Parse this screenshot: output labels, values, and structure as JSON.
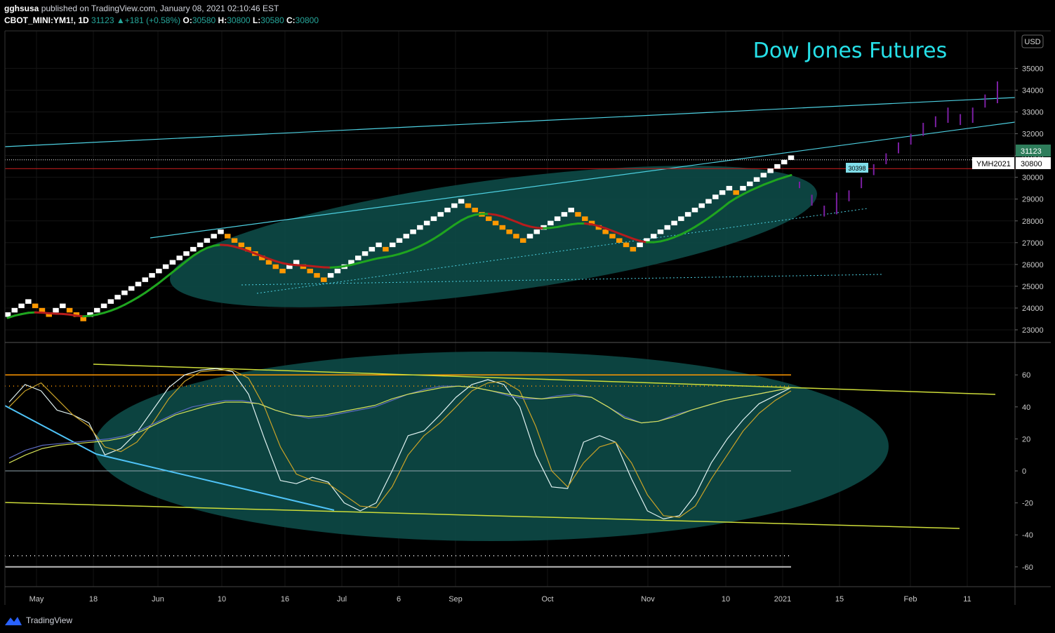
{
  "header": {
    "publisher": "gghsusa",
    "published_text": "published on TradingView.com, January 08, 2021 02:10:46 EST",
    "symbol": "CBOT_MINI:YM1!, 1D",
    "last": "31123",
    "change": "+181 (+0.58%)",
    "o_label": "O:",
    "o": "30580",
    "h_label": "H:",
    "h": "30800",
    "l_label": "L:",
    "l": "30580",
    "c_label": "C:",
    "c": "30800"
  },
  "currency_button": "USD",
  "annotation_title": "Dow Jones Futures",
  "price_tags": {
    "last": "31123",
    "close": "30800",
    "contract": "YMH2021",
    "level": "30398"
  },
  "footer": {
    "brand": "TradingView"
  },
  "colors": {
    "background": "#000000",
    "bull_brick": "#ffffff",
    "bear_brick": "#ff9800",
    "ma_up": "#1fa51f",
    "ma_down": "#b71c1c",
    "trendline": "#4dd0e1",
    "ellipse": "#0d4a47",
    "title": "#26e0e8",
    "projection": "#7b1fa2",
    "osc_fast": "#e0f2f1",
    "osc_slow": "#c9a227",
    "osc_signal": "#d4e157",
    "osc_avg": "#5c6bc0"
  },
  "chart_data": [
    {
      "type": "renko",
      "y_axis": {
        "ticks": [
          23000,
          24000,
          25000,
          26000,
          27000,
          28000,
          29000,
          30000,
          31000,
          32000,
          33000,
          34000,
          35000
        ],
        "range": [
          22400,
          35800
        ]
      },
      "x_axis": {
        "ticks": [
          "May",
          "18",
          "Jun",
          "10",
          "16",
          "Jul",
          "6",
          "Sep",
          "Oct",
          "Nov",
          "10",
          "2021",
          "15",
          "Feb",
          "11"
        ]
      },
      "box_size": 200,
      "bricks": [
        23700,
        23900,
        24100,
        24300,
        24100,
        23900,
        23700,
        23900,
        24100,
        23900,
        23700,
        23500,
        23700,
        23900,
        24100,
        24300,
        24500,
        24700,
        24900,
        25100,
        25300,
        25500,
        25700,
        25900,
        26100,
        26300,
        26500,
        26700,
        26900,
        27100,
        27300,
        27500,
        27300,
        27100,
        26900,
        26700,
        26500,
        26300,
        26100,
        25900,
        25700,
        25900,
        26100,
        25900,
        25700,
        25500,
        25300,
        25500,
        25700,
        25900,
        26100,
        26300,
        26500,
        26700,
        26900,
        26700,
        26900,
        27100,
        27300,
        27500,
        27700,
        27900,
        28100,
        28300,
        28500,
        28700,
        28900,
        28700,
        28500,
        28300,
        28100,
        27900,
        27700,
        27500,
        27300,
        27100,
        27300,
        27500,
        27700,
        27900,
        28100,
        28300,
        28500,
        28300,
        28100,
        27900,
        27700,
        27500,
        27300,
        27100,
        26900,
        26700,
        26900,
        27100,
        27300,
        27500,
        27700,
        27900,
        28100,
        28300,
        28500,
        28700,
        28900,
        29100,
        29300,
        29500,
        29300,
        29500,
        29700,
        29900,
        30100,
        30300,
        30500,
        30700,
        30900
      ],
      "ma_line": [
        23550,
        23650,
        23720,
        23780,
        23800,
        23790,
        23760,
        23740,
        23730,
        23700,
        23650,
        23620,
        23640,
        23700,
        23780,
        23880,
        24000,
        24150,
        24320,
        24500,
        24700,
        24920,
        25150,
        25400,
        25650,
        25900,
        26150,
        26400,
        26600,
        26760,
        26860,
        26900,
        26880,
        26820,
        26730,
        26620,
        26500,
        26380,
        26260,
        26150,
        26060,
        26000,
        25970,
        25950,
        25930,
        25900,
        25870,
        25860,
        25880,
        25920,
        25980,
        26060,
        26140,
        26220,
        26290,
        26340,
        26400,
        26480,
        26580,
        26700,
        26840,
        27000,
        27180,
        27380,
        27600,
        27820,
        28020,
        28180,
        28280,
        28320,
        28320,
        28280,
        28200,
        28080,
        27960,
        27830,
        27740,
        27680,
        27660,
        27680,
        27720,
        27780,
        27840,
        27880,
        27880,
        27840,
        27760,
        27660,
        27540,
        27420,
        27300,
        27180,
        27080,
        27020,
        27020,
        27060,
        27140,
        27250,
        27380,
        27540,
        27720,
        27920,
        28130,
        28360,
        28600,
        28850,
        29050,
        29220,
        29380,
        29520,
        29660,
        29780,
        29900,
        30000,
        30100
      ],
      "horizontal_lines": [
        30398,
        30800
      ],
      "projection_bars": [
        [
          29500,
          29800
        ],
        [
          28700,
          29200
        ],
        [
          28200,
          28700
        ],
        [
          28300,
          29300
        ],
        [
          28900,
          29400
        ],
        [
          29500,
          30000
        ],
        [
          30100,
          30600
        ],
        [
          30600,
          31100
        ],
        [
          31100,
          31600
        ],
        [
          31500,
          32000
        ],
        [
          31900,
          32500
        ],
        [
          32300,
          32800
        ],
        [
          32500,
          33200
        ],
        [
          32400,
          32900
        ],
        [
          32500,
          33200
        ],
        [
          33200,
          33800
        ],
        [
          33400,
          34400
        ]
      ]
    },
    {
      "type": "line",
      "y_axis": {
        "ticks": [
          -60,
          -40,
          -20,
          0,
          20,
          40,
          60
        ],
        "range": [
          -72,
          76
        ]
      },
      "levels": [
        60,
        53,
        0,
        -53,
        -60
      ],
      "series": [
        {
          "values": [
            43,
            54,
            50,
            38,
            35,
            30,
            10,
            14,
            24,
            38,
            52,
            60,
            63,
            64,
            62,
            48,
            20,
            -6,
            -8,
            -4,
            -7,
            -20,
            -25,
            -20,
            0,
            22,
            25,
            35,
            46,
            54,
            57,
            54,
            40,
            10,
            -10,
            -11,
            18,
            22,
            18,
            -5,
            -25,
            -30,
            -28,
            -15,
            5,
            20,
            32,
            42,
            47,
            52
          ]
        },
        {
          "values": [
            40,
            50,
            55,
            45,
            35,
            28,
            15,
            12,
            18,
            30,
            45,
            56,
            62,
            63,
            63,
            58,
            40,
            15,
            -2,
            -6,
            -8,
            -15,
            -22,
            -23,
            -10,
            10,
            22,
            30,
            40,
            50,
            55,
            56,
            50,
            28,
            0,
            -10,
            5,
            15,
            18,
            5,
            -15,
            -28,
            -29,
            -22,
            -5,
            10,
            25,
            36,
            44,
            50
          ]
        },
        {
          "values": [
            8,
            13,
            16,
            17,
            18,
            19,
            20,
            22,
            26,
            31,
            36,
            40,
            42,
            44,
            44,
            42,
            38,
            35,
            33,
            34,
            36,
            38,
            40,
            44,
            48,
            51,
            53,
            53,
            52,
            50,
            47,
            45,
            45,
            47,
            48,
            46,
            40,
            34,
            30,
            31,
            35,
            38,
            41,
            44,
            46,
            48,
            50,
            52
          ]
        },
        {
          "values": [
            5,
            10,
            14,
            16,
            17,
            18,
            19,
            21,
            25,
            30,
            35,
            38,
            41,
            43,
            43,
            42,
            38,
            35,
            34,
            35,
            37,
            39,
            41,
            45,
            48,
            50,
            52,
            53,
            52,
            50,
            48,
            46,
            45,
            46,
            47,
            46,
            40,
            33,
            30,
            31,
            34,
            38,
            41,
            44,
            46,
            48,
            50,
            52
          ]
        }
      ]
    }
  ]
}
